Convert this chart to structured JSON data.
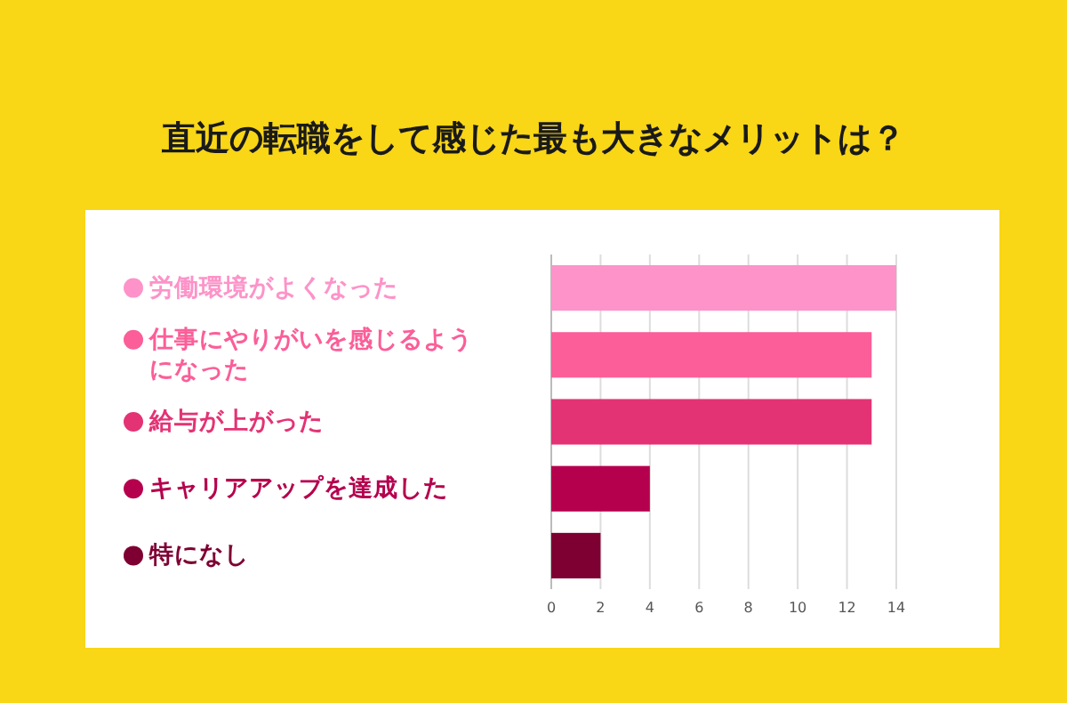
{
  "chart_data": {
    "type": "bar",
    "orientation": "horizontal",
    "title": "直近の転職をして感じた最も大きなメリットは？",
    "categories": [
      "労働環境がよくなった",
      "仕事にやりがいを感じるようになった",
      "給与が上がった",
      "キャリアアップを達成した",
      "特になし"
    ],
    "values": [
      14,
      13,
      13,
      4,
      2
    ],
    "colors": [
      "#fd93c8",
      "#fb5e98",
      "#e33374",
      "#b5004d",
      "#7e0032"
    ],
    "xlim": [
      0,
      14
    ],
    "xticks": [
      0,
      2,
      4,
      6,
      8,
      10,
      12,
      14
    ],
    "grid": "x"
  }
}
